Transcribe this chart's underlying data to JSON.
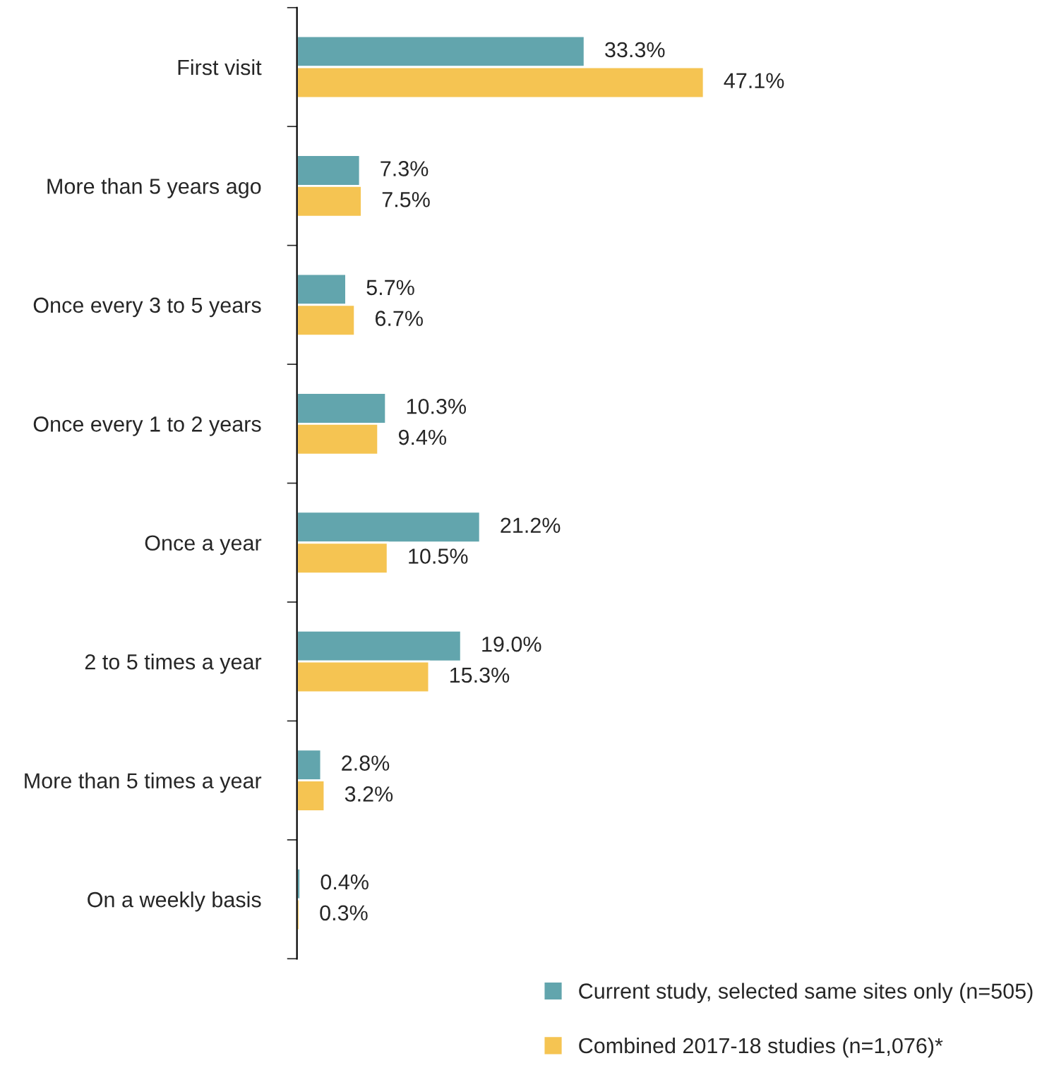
{
  "chart_data": {
    "type": "bar",
    "orientation": "horizontal",
    "categories": [
      "First visit",
      "More than 5 years ago",
      "Once every 3 to 5 years",
      "Once every 1 to 2 years",
      "Once a year",
      "2 to 5 times a year",
      "More than 5 times a year",
      "On a weekly basis"
    ],
    "series": [
      {
        "name": "Current study, selected same sites only (n=505)",
        "color": "#62a5ad",
        "values": [
          33.3,
          7.3,
          5.7,
          10.3,
          21.2,
          19.0,
          2.8,
          0.4
        ],
        "value_labels": [
          "33.3%",
          "7.3%",
          "5.7%",
          "10.3%",
          "21.2%",
          "19.0%",
          "2.8%",
          "0.4%"
        ]
      },
      {
        "name": "Combined 2017-18 studies (n=1,076)*",
        "color": "#f5c452",
        "values": [
          47.1,
          7.5,
          6.7,
          9.4,
          10.5,
          15.3,
          3.2,
          0.3
        ],
        "value_labels": [
          "47.1%",
          "7.5%",
          "6.7%",
          "9.4%",
          "10.5%",
          "15.3%",
          "3.2%",
          "0.3%"
        ]
      }
    ],
    "tick_labels": "y",
    "grid": false,
    "legend": "bottom right"
  }
}
